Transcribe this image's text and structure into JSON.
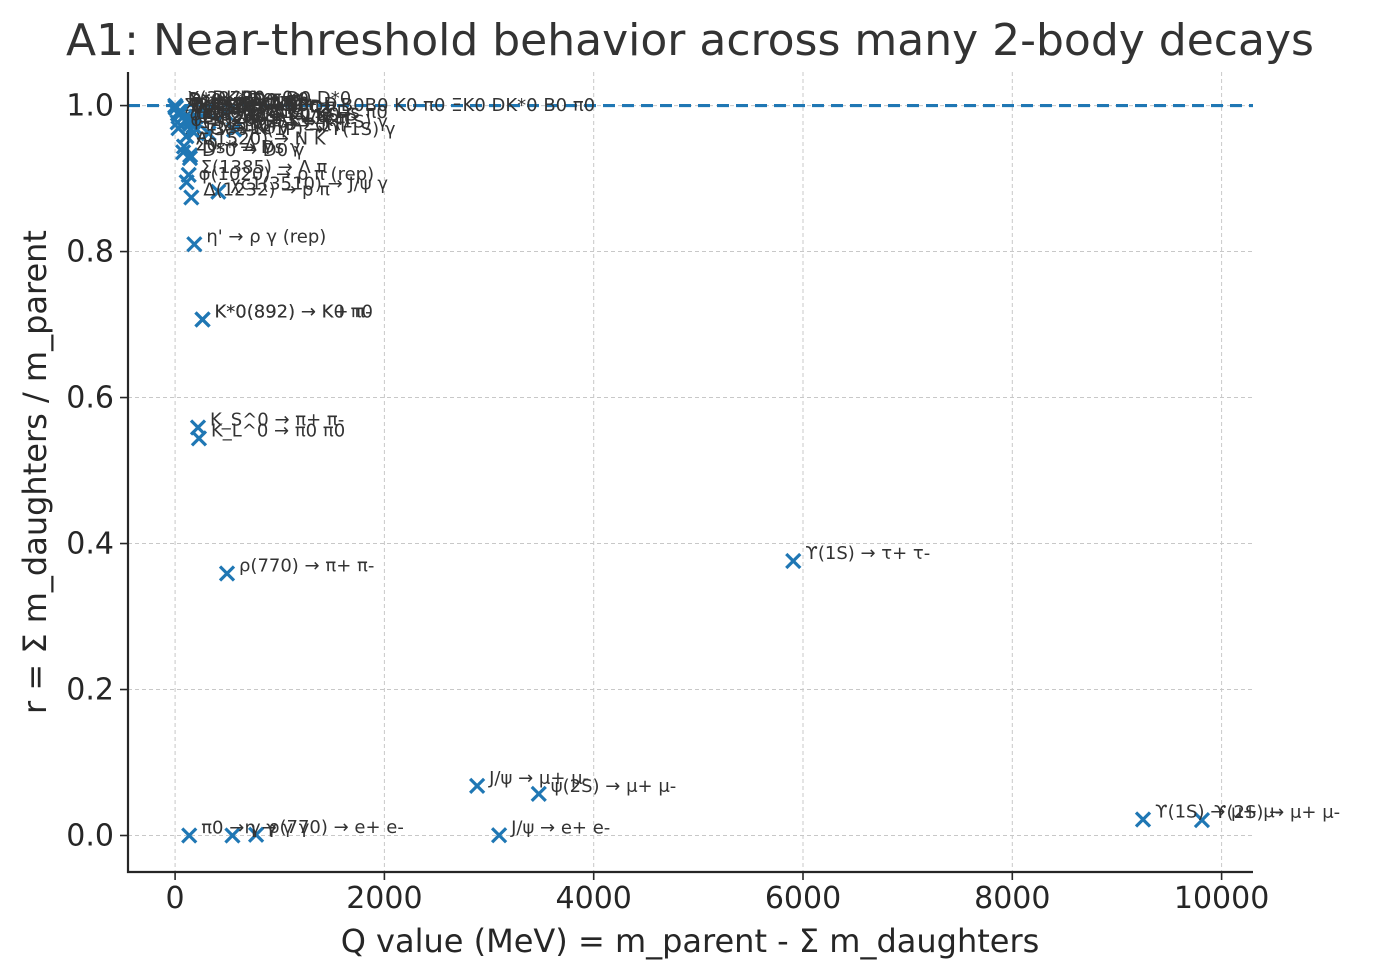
{
  "chart_data": {
    "type": "scatter",
    "title": "A1: Near-threshold behavior across many 2-body decays",
    "xlabel": "Q value (MeV)  = m_parent - Σ m_daughters",
    "ylabel": "r = Σ m_daughters / m_parent",
    "xlim": [
      -450,
      10300
    ],
    "ylim": [
      -0.05,
      1.046
    ],
    "xticks": [
      0,
      2000,
      4000,
      6000,
      8000,
      10000
    ],
    "yticks": [
      0.0,
      0.2,
      0.4,
      0.6,
      0.8,
      1.0
    ],
    "ytick_labels": [
      "0.0",
      "0.2",
      "0.4",
      "0.6",
      "0.8",
      "1.0"
    ],
    "grid": true,
    "reference_line": {
      "y": 1.0,
      "style": "dashed"
    },
    "marker": "x",
    "color": "#1f77b4",
    "points": [
      {
        "label": "π0 → γ γ",
        "x": 135,
        "y": 0.0
      },
      {
        "label": "η → γ γ",
        "x": 548,
        "y": 0.0
      },
      {
        "label": "ρ(770) → e+ e-",
        "x": 774,
        "y": 0.001
      },
      {
        "label": "J/ψ → e+ e-",
        "x": 3096,
        "y": 0.0003
      },
      {
        "label": "J/ψ → μ+ μ-",
        "x": 2886,
        "y": 0.068
      },
      {
        "label": "ψ(2S) → μ+ μ-",
        "x": 3475,
        "y": 0.057
      },
      {
        "label": "ϒ(1S) → μ+ μ-",
        "x": 9249,
        "y": 0.022
      },
      {
        "label": "ϒ(2S) → μ+ μ-",
        "x": 9812,
        "y": 0.021
      },
      {
        "label": "ϒ(1S) → τ+ τ-",
        "x": 5907,
        "y": 0.376
      },
      {
        "label": "ρ(770) → π+ π-",
        "x": 496,
        "y": 0.359
      },
      {
        "label": "K_S^0 → π+ π-",
        "x": 219,
        "y": 0.559
      },
      {
        "label": "K_L^0 → π0 π0",
        "x": 228,
        "y": 0.544
      },
      {
        "label": "K*0(892) → K+ π-",
        "x": 262,
        "y": 0.707
      },
      {
        "label": "K*0(892) → K0 π0",
        "x": 262,
        "y": 0.707
      },
      {
        "label": "η' → ρ γ (rep)",
        "x": 184,
        "y": 0.81
      },
      {
        "label": "φ(1020) → ρ π (rep)",
        "x": 110,
        "y": 0.895
      },
      {
        "label": "Σ(1385) → Λ π",
        "x": 130,
        "y": 0.905
      },
      {
        "label": "Δ(1232) → p π",
        "x": 155,
        "y": 0.874
      },
      {
        "label": "χc1(3510) → J/ψ γ",
        "x": 413,
        "y": 0.882
      },
      {
        "label": "Σ0 → Λ γ",
        "x": 77,
        "y": 0.936
      },
      {
        "label": "ϒ(2S) → ϒ(1S) γ",
        "x": 563,
        "y": 0.967
      },
      {
        "label": "Ξ(1530) → Ξ π",
        "x": 180,
        "y": 0.963
      },
      {
        "label": "Ξc(2645) → Ξc π",
        "x": 175,
        "y": 0.972
      },
      {
        "label": "Σc(2520) → Λc π",
        "x": 146,
        "y": 0.975
      },
      {
        "label": "φ(1020) → K+ K-",
        "x": 32,
        "y": 0.969
      },
      {
        "label": "φ(1020) → KL KS",
        "x": 24,
        "y": 0.977
      },
      {
        "label": "D*0 → D0 π0",
        "x": 7,
        "y": 0.997
      },
      {
        "label": "D*+ → D0 π+",
        "x": 6,
        "y": 0.997
      },
      {
        "label": "D*+ → D+ π0",
        "x": 5,
        "y": 0.998
      },
      {
        "label": "Σc(2455) → Λc π",
        "x": 27,
        "y": 0.989
      },
      {
        "label": "Ds* → Ds γ",
        "x": 144,
        "y": 0.932
      },
      {
        "label": "B* → B γ",
        "x": 45,
        "y": 0.991
      },
      {
        "label": "Bs* → Bs γ",
        "x": 48,
        "y": 0.991
      },
      {
        "label": "Ξc' → Ξc γ",
        "x": 108,
        "y": 0.958
      },
      {
        "label": "D*0 → D0 γ",
        "x": 142,
        "y": 0.928
      },
      {
        "label": "Λ(1520) → N K",
        "x": 85,
        "y": 0.944
      },
      {
        "label": "ψ(3770) → D D",
        "x": 44,
        "y": 0.988
      },
      {
        "label": "ψ(3770) → D+ D-",
        "x": 34,
        "y": 0.991
      },
      {
        "label": "a1 → ρ π",
        "x": 150,
        "y": 0.981
      },
      {
        "label": "X(3872) → D0 D*0",
        "x": 1,
        "y": 0.9997
      },
      {
        "label": "Ds0*(2317) → Ds π0",
        "x": 185,
        "y": 0.98
      },
      {
        "label": "B1 → B* π",
        "x": 95,
        "y": 0.979
      },
      {
        "label": "Λb → Λc π",
        "x": 200,
        "y": 0.985
      },
      {
        "label": "Z → K0 K0",
        "x": 300,
        "y": 0.992
      },
      {
        "label": "K_S K0",
        "x": 480,
        "y": 0.99
      },
      {
        "label": "χc1(1P) → Ω π",
        "x": 320,
        "y": 0.962
      }
    ],
    "callout_points": [
      {
        "label": "DK*0",
        "x": 240,
        "y": 1.0
      },
      {
        "label": "B0 π0",
        "x": 520,
        "y": 1.0
      }
    ]
  },
  "visible_texts": {
    "cluster_labels_top": "ΣD(2010)→D0π+ B0B0 K0 π0 ΞK0 DK*0 B0 π0",
    "cluster_labels_mid": "K (1030) → K0 K0 S",
    "cluster_labels_low": "Σ(1385)K(1P) → ϒ(1S) γ"
  }
}
